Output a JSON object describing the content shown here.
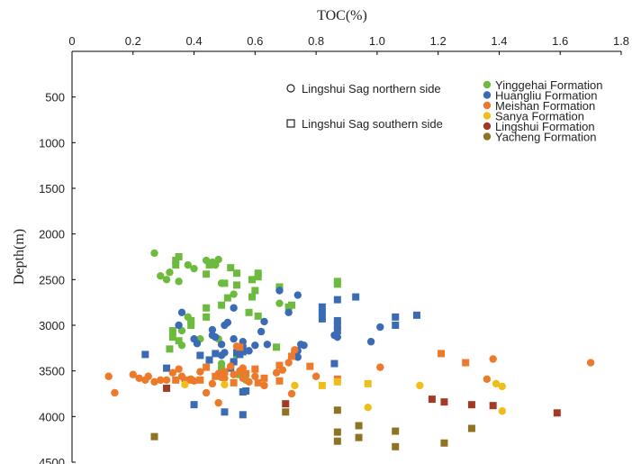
{
  "chart_data": {
    "type": "scatter",
    "xlabel": "TOC(%)",
    "ylabel": "Depth(m)",
    "xlim": [
      0,
      1.8
    ],
    "ylim": [
      0,
      4500
    ],
    "y_reversed": true,
    "x_axis_position": "top",
    "x_ticks": [
      "0",
      "0.2",
      "0.4",
      "0.6",
      "0.8",
      "1.0",
      "1.2",
      "1.4",
      "1.6",
      "1.8"
    ],
    "y_ticks": [
      "500",
      "1000",
      "1500",
      "2000",
      "2500",
      "3000",
      "3500",
      "4000",
      "4500"
    ],
    "grid": false,
    "marker_legend": [
      {
        "shape": "circle",
        "label": "Lingshui Sag northern side"
      },
      {
        "shape": "square",
        "label": "Lingshui Sag southern side"
      }
    ],
    "legend_position": "top-right",
    "series": [
      {
        "name": "Yinggehai Formation",
        "color": "#6dbb3e",
        "circles": [
          [
            0.27,
            2210
          ],
          [
            0.29,
            2460
          ],
          [
            0.31,
            2500
          ],
          [
            0.32,
            2420
          ],
          [
            0.35,
            2520
          ],
          [
            0.38,
            2340
          ],
          [
            0.4,
            2380
          ],
          [
            0.44,
            2290
          ],
          [
            0.46,
            2310
          ],
          [
            0.48,
            2280
          ],
          [
            0.47,
            2340
          ],
          [
            0.49,
            2540
          ],
          [
            0.53,
            2660
          ],
          [
            0.38,
            2910
          ],
          [
            0.42,
            3150
          ],
          [
            0.36,
            3220
          ],
          [
            0.49,
            3420
          ],
          [
            0.57,
            3600
          ],
          [
            0.68,
            2590
          ],
          [
            0.68,
            2760
          ],
          [
            0.48,
            3150
          ],
          [
            0.36,
            3060
          ]
        ],
        "squares": [
          [
            0.34,
            2290
          ],
          [
            0.35,
            2250
          ],
          [
            0.34,
            2340
          ],
          [
            0.44,
            2440
          ],
          [
            0.45,
            2340
          ],
          [
            0.5,
            2540
          ],
          [
            0.52,
            2370
          ],
          [
            0.54,
            2430
          ],
          [
            0.59,
            2500
          ],
          [
            0.61,
            2430
          ],
          [
            0.61,
            2470
          ],
          [
            0.59,
            2690
          ],
          [
            0.6,
            2620
          ],
          [
            0.51,
            2700
          ],
          [
            0.54,
            2560
          ],
          [
            0.49,
            2780
          ],
          [
            0.44,
            2810
          ],
          [
            0.44,
            2910
          ],
          [
            0.39,
            2950
          ],
          [
            0.39,
            3000
          ],
          [
            0.35,
            3170
          ],
          [
            0.33,
            3060
          ],
          [
            0.33,
            3130
          ],
          [
            0.32,
            3260
          ],
          [
            0.54,
            3320
          ],
          [
            0.49,
            3480
          ],
          [
            0.55,
            3540
          ],
          [
            0.58,
            2860
          ],
          [
            0.61,
            2900
          ],
          [
            0.68,
            2580
          ],
          [
            0.72,
            2780
          ],
          [
            0.87,
            2520
          ],
          [
            0.87,
            2550
          ],
          [
            0.71,
            2800
          ],
          [
            0.67,
            3240
          ]
        ]
      },
      {
        "name": "Huangliu Formation",
        "color": "#3c6bb5",
        "circles": [
          [
            0.36,
            2860
          ],
          [
            0.35,
            3000
          ],
          [
            0.4,
            3150
          ],
          [
            0.41,
            3200
          ],
          [
            0.46,
            3050
          ],
          [
            0.47,
            3130
          ],
          [
            0.5,
            3000
          ],
          [
            0.51,
            2970
          ],
          [
            0.53,
            2810
          ],
          [
            0.49,
            3210
          ],
          [
            0.5,
            3300
          ],
          [
            0.53,
            3150
          ],
          [
            0.55,
            3250
          ],
          [
            0.56,
            3180
          ],
          [
            0.58,
            3280
          ],
          [
            0.6,
            3220
          ],
          [
            0.62,
            3070
          ],
          [
            0.63,
            2960
          ],
          [
            0.64,
            3210
          ],
          [
            0.68,
            2620
          ],
          [
            0.71,
            2860
          ],
          [
            0.74,
            2670
          ],
          [
            0.75,
            3210
          ],
          [
            0.74,
            3280
          ],
          [
            0.74,
            3350
          ],
          [
            0.76,
            3220
          ],
          [
            0.86,
            3110
          ],
          [
            0.87,
            3130
          ],
          [
            0.98,
            3180
          ],
          [
            1.01,
            3020
          ],
          [
            0.53,
            3400
          ],
          [
            0.49,
            3330
          ],
          [
            0.46,
            3110
          ]
        ],
        "squares": [
          [
            0.42,
            3330
          ],
          [
            0.45,
            3380
          ],
          [
            0.47,
            3310
          ],
          [
            0.53,
            3400
          ],
          [
            0.56,
            3250
          ],
          [
            0.55,
            3320
          ],
          [
            0.52,
            3470
          ],
          [
            0.57,
            3720
          ],
          [
            0.56,
            3290
          ],
          [
            0.54,
            3300
          ],
          [
            0.73,
            3290
          ],
          [
            0.82,
            2800
          ],
          [
            0.82,
            2860
          ],
          [
            0.82,
            2930
          ],
          [
            0.87,
            2720
          ],
          [
            0.87,
            2950
          ],
          [
            0.87,
            3000
          ],
          [
            0.87,
            3060
          ],
          [
            0.93,
            2690
          ],
          [
            1.06,
            2910
          ],
          [
            1.06,
            3000
          ],
          [
            1.13,
            2890
          ],
          [
            0.24,
            3320
          ],
          [
            0.31,
            3470
          ],
          [
            0.4,
            3870
          ],
          [
            0.5,
            3950
          ],
          [
            0.56,
            3980
          ],
          [
            0.56,
            3730
          ],
          [
            0.86,
            3420
          ]
        ]
      },
      {
        "name": "Meishan Formation",
        "color": "#ec7a2a",
        "circles": [
          [
            0.12,
            3560
          ],
          [
            0.14,
            3740
          ],
          [
            0.2,
            3540
          ],
          [
            0.22,
            3580
          ],
          [
            0.25,
            3560
          ],
          [
            0.27,
            3620
          ],
          [
            0.29,
            3600
          ],
          [
            0.31,
            3600
          ],
          [
            0.33,
            3520
          ],
          [
            0.35,
            3480
          ],
          [
            0.36,
            3560
          ],
          [
            0.37,
            3600
          ],
          [
            0.4,
            3610
          ],
          [
            0.42,
            3510
          ],
          [
            0.44,
            3740
          ],
          [
            0.46,
            3640
          ],
          [
            0.48,
            3530
          ],
          [
            0.49,
            3570
          ],
          [
            0.5,
            3580
          ],
          [
            0.52,
            3450
          ],
          [
            0.53,
            3540
          ],
          [
            0.55,
            3500
          ],
          [
            0.56,
            3470
          ],
          [
            0.56,
            3580
          ],
          [
            0.58,
            3620
          ],
          [
            0.6,
            3560
          ],
          [
            0.63,
            3660
          ],
          [
            0.67,
            3520
          ],
          [
            0.69,
            3490
          ],
          [
            0.71,
            3410
          ],
          [
            0.73,
            3270
          ],
          [
            0.72,
            3750
          ],
          [
            0.8,
            3560
          ],
          [
            1.01,
            3460
          ],
          [
            1.36,
            3590
          ],
          [
            1.38,
            3370
          ],
          [
            1.7,
            3410
          ],
          [
            0.54,
            3230
          ],
          [
            0.48,
            3850
          ],
          [
            0.39,
            3590
          ],
          [
            0.24,
            3600
          ]
        ],
        "squares": [
          [
            0.34,
            3600
          ],
          [
            0.38,
            3600
          ],
          [
            0.42,
            3600
          ],
          [
            0.44,
            3460
          ],
          [
            0.47,
            3560
          ],
          [
            0.5,
            3510
          ],
          [
            0.53,
            3630
          ],
          [
            0.57,
            3530
          ],
          [
            0.6,
            3480
          ],
          [
            0.61,
            3630
          ],
          [
            0.63,
            3580
          ],
          [
            0.68,
            3440
          ],
          [
            0.68,
            3610
          ],
          [
            0.72,
            3340
          ],
          [
            0.78,
            3450
          ],
          [
            0.87,
            3590
          ],
          [
            1.21,
            3310
          ],
          [
            1.29,
            3410
          ],
          [
            0.55,
            3240
          ]
        ]
      },
      {
        "name": "Sanya Formation",
        "color": "#f0be1a",
        "circles": [
          [
            0.37,
            3650
          ],
          [
            0.5,
            3650
          ],
          [
            0.73,
            3660
          ],
          [
            0.97,
            3900
          ],
          [
            1.14,
            3660
          ],
          [
            1.39,
            3640
          ],
          [
            1.41,
            3940
          ],
          [
            1.41,
            3670
          ]
        ],
        "squares": [
          [
            0.82,
            3660
          ],
          [
            0.87,
            3620
          ],
          [
            0.97,
            3640
          ]
        ]
      },
      {
        "name": "Lingshui Formation",
        "color": "#a33b24",
        "circles": [],
        "squares": [
          [
            0.31,
            3690
          ],
          [
            0.7,
            3860
          ],
          [
            1.18,
            3810
          ],
          [
            1.22,
            3840
          ],
          [
            1.31,
            3870
          ],
          [
            1.38,
            3880
          ],
          [
            1.59,
            3960
          ]
        ]
      },
      {
        "name": "Yacheng Formation",
        "color": "#8e7422",
        "circles": [],
        "squares": [
          [
            0.27,
            4220
          ],
          [
            0.7,
            3950
          ],
          [
            0.87,
            3930
          ],
          [
            0.87,
            4170
          ],
          [
            0.87,
            4270
          ],
          [
            0.94,
            4100
          ],
          [
            0.94,
            4230
          ],
          [
            1.06,
            4160
          ],
          [
            1.06,
            4330
          ],
          [
            1.22,
            4290
          ],
          [
            1.31,
            4130
          ]
        ]
      }
    ]
  }
}
